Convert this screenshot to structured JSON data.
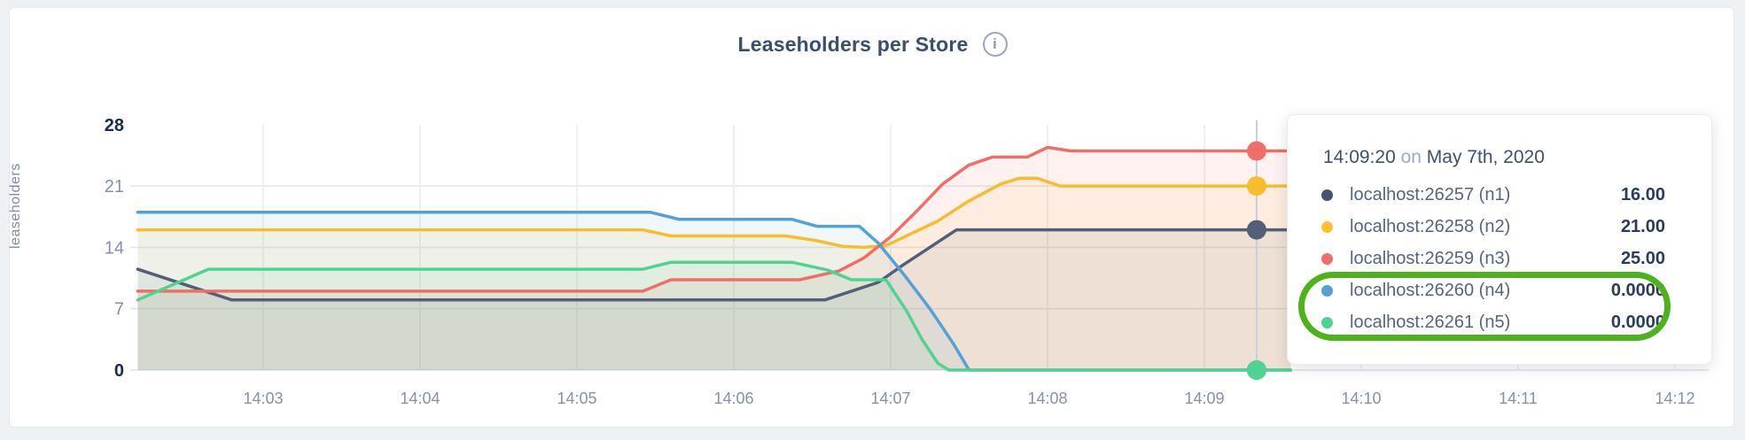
{
  "header": {
    "title": "Leaseholders per Store",
    "info_icon_glyph": "i"
  },
  "tooltip": {
    "time": "14:09:20",
    "on_word": "on",
    "date": "May 7th, 2020",
    "highlight_color": "#4db31c",
    "rows": [
      {
        "label": "localhost:26257 (n1)",
        "value": "16.00",
        "color": "#46536F",
        "highlighted": false
      },
      {
        "label": "localhost:26258 (n2)",
        "value": "21.00",
        "color": "#FDC12F",
        "highlighted": false
      },
      {
        "label": "localhost:26259 (n3)",
        "value": "25.00",
        "color": "#F16D68",
        "highlighted": false
      },
      {
        "label": "localhost:26260 (n4)",
        "value": "0.0000",
        "color": "#55A1D6",
        "highlighted": true
      },
      {
        "label": "localhost:26261 (n5)",
        "value": "0.0000",
        "color": "#4FD393",
        "highlighted": true
      }
    ]
  },
  "chart_data": {
    "type": "area",
    "title": "Leaseholders per Store",
    "xlabel": "",
    "ylabel": "leaseholders",
    "ylim": [
      0,
      28
    ],
    "yticks": [
      0,
      7,
      14,
      21,
      28
    ],
    "ytick_bold": [
      0,
      28
    ],
    "grid": true,
    "legend_position": "tooltip",
    "x_axis_note": "minutes offset measured from 14:02:00",
    "xticks": [
      {
        "label": "14:03",
        "minute": 1
      },
      {
        "label": "14:04",
        "minute": 2
      },
      {
        "label": "14:05",
        "minute": 3
      },
      {
        "label": "14:06",
        "minute": 4
      },
      {
        "label": "14:07",
        "minute": 5
      },
      {
        "label": "14:08",
        "minute": 6
      },
      {
        "label": "14:09",
        "minute": 7
      },
      {
        "label": "14:10",
        "minute": 8
      },
      {
        "label": "14:11",
        "minute": 9
      },
      {
        "label": "14:12",
        "minute": 10
      }
    ],
    "crosshair": {
      "minute": 7.333,
      "time_label": "14:09:20"
    },
    "series": [
      {
        "name": "localhost:26257 (n1)",
        "color": "#525F77",
        "crosshair_value": 16,
        "points": [
          [
            0.2,
            11.5
          ],
          [
            0.8,
            8
          ],
          [
            4.58,
            8
          ],
          [
            4.92,
            10
          ],
          [
            5.08,
            12
          ],
          [
            5.42,
            16
          ],
          [
            7.55,
            16
          ]
        ]
      },
      {
        "name": "localhost:26258 (n2)",
        "color": "#F5BE2A",
        "crosshair_value": 21,
        "points": [
          [
            0.2,
            16
          ],
          [
            3.42,
            16
          ],
          [
            3.6,
            15.3
          ],
          [
            4.33,
            15.3
          ],
          [
            4.52,
            14.8
          ],
          [
            4.7,
            14.1
          ],
          [
            4.83,
            14
          ],
          [
            4.97,
            14.2
          ],
          [
            5.1,
            15.3
          ],
          [
            5.3,
            17
          ],
          [
            5.5,
            19.3
          ],
          [
            5.7,
            21.2
          ],
          [
            5.82,
            21.9
          ],
          [
            5.93,
            21.9
          ],
          [
            6.08,
            21
          ],
          [
            7.55,
            21
          ]
        ]
      },
      {
        "name": "localhost:26259 (n3)",
        "color": "#F16D68",
        "crosshair_value": 25,
        "points": [
          [
            0.2,
            9
          ],
          [
            3.42,
            9
          ],
          [
            3.6,
            10.3
          ],
          [
            4.42,
            10.3
          ],
          [
            4.67,
            11.3
          ],
          [
            4.83,
            12.8
          ],
          [
            5.0,
            15.2
          ],
          [
            5.17,
            18.2
          ],
          [
            5.33,
            21.2
          ],
          [
            5.5,
            23.4
          ],
          [
            5.65,
            24.3
          ],
          [
            5.87,
            24.3
          ],
          [
            6.0,
            25.4
          ],
          [
            6.15,
            25
          ],
          [
            7.55,
            25
          ]
        ]
      },
      {
        "name": "localhost:26260 (n4)",
        "color": "#55A1D6",
        "crosshair_value": 0,
        "points": [
          [
            0.2,
            18
          ],
          [
            3.47,
            18
          ],
          [
            3.65,
            17.2
          ],
          [
            4.37,
            17.2
          ],
          [
            4.53,
            16.4
          ],
          [
            4.8,
            16.4
          ],
          [
            4.92,
            14.5
          ],
          [
            5.08,
            11
          ],
          [
            5.25,
            7
          ],
          [
            5.4,
            3
          ],
          [
            5.5,
            0
          ],
          [
            7.55,
            0
          ]
        ]
      },
      {
        "name": "localhost:26261 (n5)",
        "color": "#4FD393",
        "crosshair_value": 0,
        "points": [
          [
            0.2,
            8
          ],
          [
            0.65,
            11.5
          ],
          [
            3.42,
            11.5
          ],
          [
            3.6,
            12.3
          ],
          [
            4.37,
            12.3
          ],
          [
            4.6,
            11.4
          ],
          [
            4.75,
            10.3
          ],
          [
            4.97,
            10.3
          ],
          [
            5.1,
            6.8
          ],
          [
            5.2,
            3.5
          ],
          [
            5.3,
            0.8
          ],
          [
            5.37,
            0
          ],
          [
            7.55,
            0
          ]
        ]
      }
    ]
  }
}
